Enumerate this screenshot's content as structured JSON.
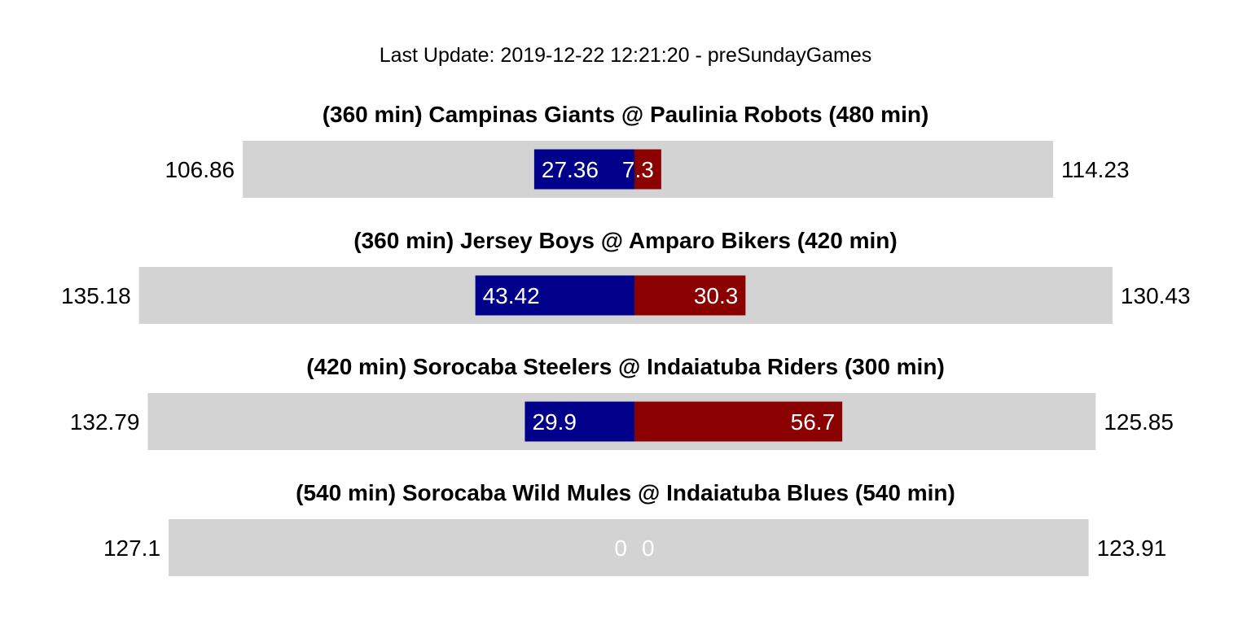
{
  "update_text": "Last Update: 2019-12-22 12:21:20 - preSundayGames",
  "chart_data": {
    "type": "bar",
    "colors": {
      "track": "#d3d3d3",
      "away": "#00008b",
      "home": "#8b0000",
      "label": "#ffffff"
    },
    "games": [
      {
        "title": "(360 min) Campinas Giants @ Paulinia Robots (480 min)",
        "away_projection": 106.86,
        "home_projection": 114.23,
        "away_score": 27.36,
        "home_score": 7.3,
        "away_label": "27.36",
        "home_label": "7.3",
        "away_proj_label": "106.86",
        "home_proj_label": "114.23"
      },
      {
        "title": "(360 min) Jersey Boys @ Amparo Bikers (420 min)",
        "away_projection": 135.18,
        "home_projection": 130.43,
        "away_score": 43.42,
        "home_score": 30.3,
        "away_label": "43.42",
        "home_label": "30.3",
        "away_proj_label": "135.18",
        "home_proj_label": "130.43"
      },
      {
        "title": "(420 min) Sorocaba Steelers @ Indaiatuba Riders (300 min)",
        "away_projection": 132.79,
        "home_projection": 125.85,
        "away_score": 29.9,
        "home_score": 56.7,
        "away_label": "29.9",
        "home_label": "56.7",
        "away_proj_label": "132.79",
        "home_proj_label": "125.85"
      },
      {
        "title": "(540 min) Sorocaba Wild Mules @ Indaiatuba Blues (540 min)",
        "away_projection": 127.1,
        "home_projection": 123.91,
        "away_score": 0,
        "home_score": 0,
        "away_label": "0",
        "home_label": "0",
        "away_proj_label": "127.1",
        "home_proj_label": "123.91"
      }
    ]
  }
}
